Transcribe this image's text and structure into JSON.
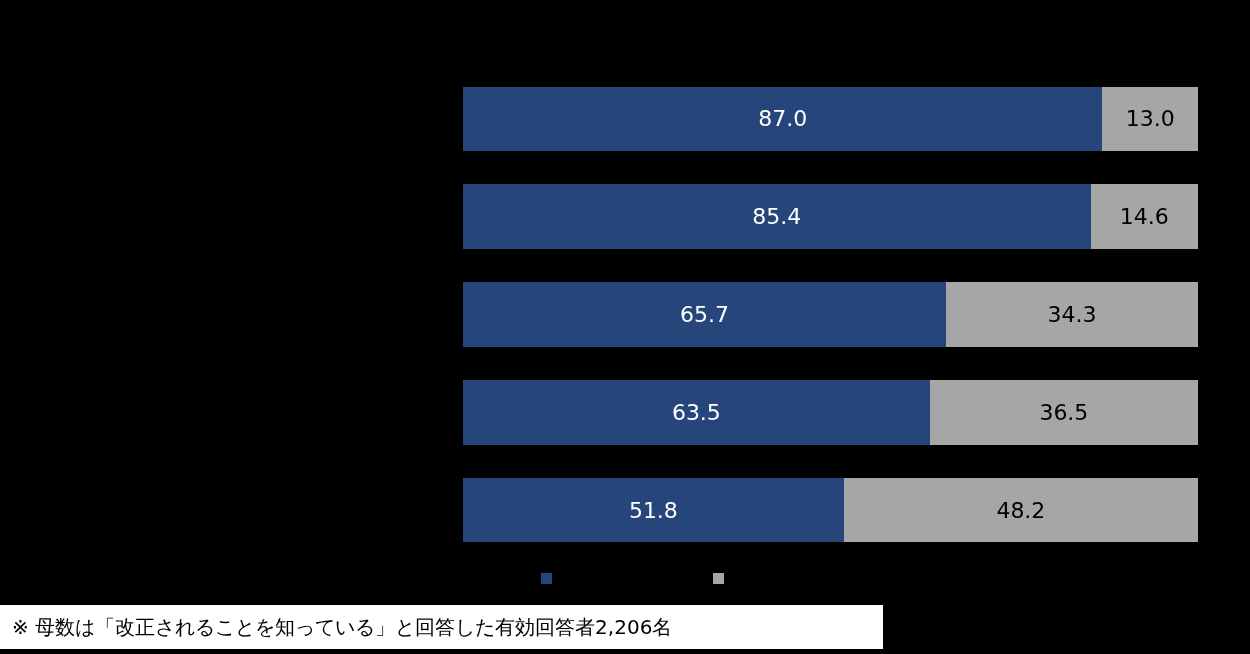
{
  "chart_data": {
    "type": "bar",
    "orientation": "horizontal",
    "stacked": true,
    "categories": [
      null,
      null,
      null,
      null,
      null
    ],
    "series": [
      {
        "color": "#26457a",
        "values": [
          87.0,
          85.4,
          65.7,
          63.5,
          51.8
        ],
        "value_labels": [
          "87.0",
          "85.4",
          "65.7",
          "63.5",
          "51.8"
        ]
      },
      {
        "color": "#a6a6a6",
        "values": [
          13.0,
          14.6,
          34.3,
          36.5,
          48.2
        ],
        "value_labels": [
          "13.0",
          "14.6",
          "34.3",
          "36.5",
          "48.2"
        ]
      }
    ],
    "xlim": [
      0,
      100
    ],
    "annotations": [
      "※ 母数は「改正されることを知っている」と回答した有効回答者2,206名"
    ]
  }
}
